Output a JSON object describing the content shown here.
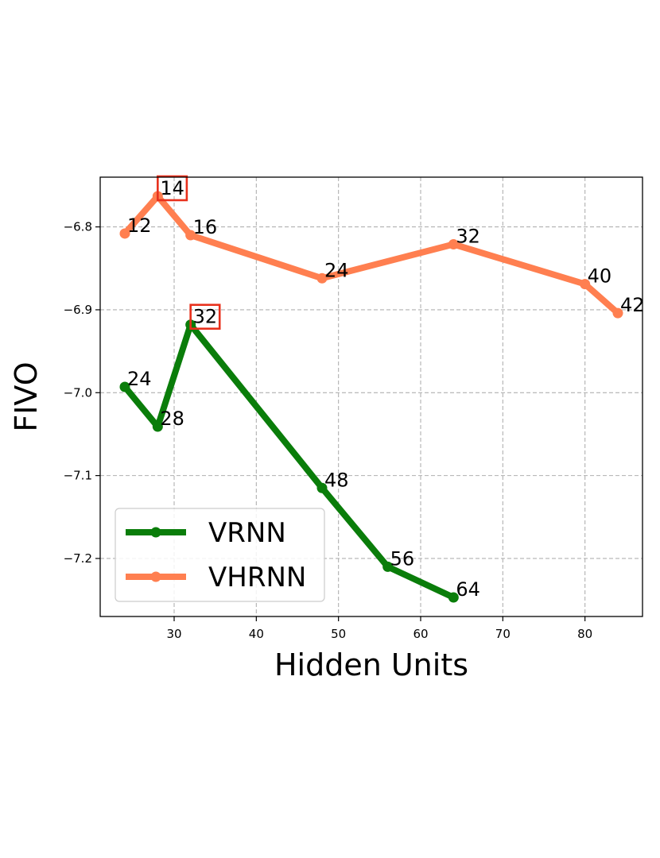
{
  "chart_data": {
    "type": "line",
    "title": "",
    "xlabel": "Hidden Units",
    "ylabel": "FIVO",
    "xlim": [
      21,
      87
    ],
    "ylim": [
      -7.27,
      -6.74
    ],
    "x_ticks": [
      30,
      40,
      50,
      60,
      70,
      80
    ],
    "y_ticks": [
      -6.8,
      -6.9,
      -7.0,
      -7.1,
      -7.2
    ],
    "x_tick_labels": [
      "30",
      "40",
      "50",
      "60",
      "70",
      "80"
    ],
    "y_tick_labels": [
      "−6.8",
      "−6.9",
      "−7.0",
      "−7.1",
      "−7.2"
    ],
    "grid": true,
    "legend_position": "lower-left",
    "series": [
      {
        "name": "VRNN",
        "color": "#0a7d0a",
        "points": [
          {
            "x": 24,
            "y": -6.993,
            "label": "24",
            "highlight": false
          },
          {
            "x": 28,
            "y": -7.041,
            "label": "28",
            "highlight": false
          },
          {
            "x": 32,
            "y": -6.918,
            "label": "32",
            "highlight": true
          },
          {
            "x": 48,
            "y": -7.115,
            "label": "48",
            "highlight": false
          },
          {
            "x": 56,
            "y": -7.21,
            "label": "56",
            "highlight": false
          },
          {
            "x": 64,
            "y": -7.247,
            "label": "64",
            "highlight": false
          }
        ]
      },
      {
        "name": "VHRNN",
        "color": "#ff7f50",
        "points": [
          {
            "x": 24,
            "y": -6.808,
            "label": "12",
            "highlight": false
          },
          {
            "x": 28,
            "y": -6.763,
            "label": "14",
            "highlight": true
          },
          {
            "x": 32,
            "y": -6.81,
            "label": "16",
            "highlight": false
          },
          {
            "x": 48,
            "y": -6.862,
            "label": "24",
            "highlight": false
          },
          {
            "x": 64,
            "y": -6.821,
            "label": "32",
            "highlight": false
          },
          {
            "x": 80,
            "y": -6.869,
            "label": "40",
            "highlight": false
          },
          {
            "x": 84,
            "y": -6.904,
            "label": "42",
            "highlight": false
          }
        ]
      }
    ],
    "highlight_box_color": "#e8301c",
    "grid_color": "#b0b0b0"
  }
}
